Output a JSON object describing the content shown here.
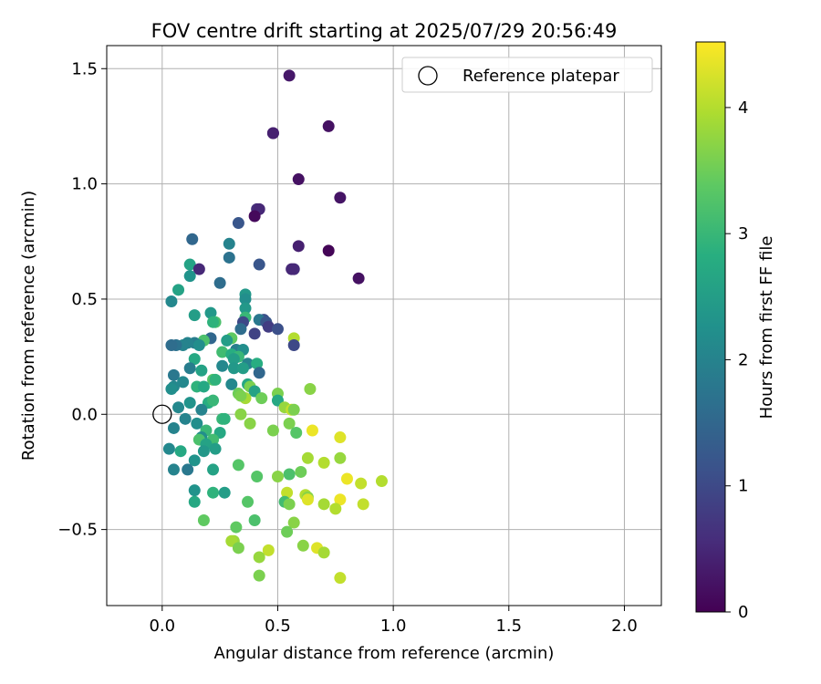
{
  "chart_data": {
    "type": "scatter",
    "title": "FOV centre drift starting at 2025/07/29 20:56:49",
    "xlabel": "Angular distance from reference (arcmin)",
    "ylabel": "Rotation from reference (arcmin)",
    "xlim": [
      -0.24,
      2.16
    ],
    "ylim": [
      -0.83,
      1.6
    ],
    "xticks": [
      "0.0",
      "0.5",
      "1.0",
      "1.5",
      "2.0"
    ],
    "xtick_values": [
      0,
      0.5,
      1,
      1.5,
      2
    ],
    "yticks": [
      "−0.5",
      "0.0",
      "0.5",
      "1.0",
      "1.5"
    ],
    "ytick_values": [
      -0.5,
      0,
      0.5,
      1,
      1.5
    ],
    "grid": true,
    "legend": {
      "position": "top-right",
      "entries": [
        {
          "label": "Reference platepar",
          "marker": "open-circle"
        }
      ]
    },
    "reference_point": {
      "x": 0.0,
      "y": 0.0,
      "label": "Reference platepar"
    },
    "colorbar": {
      "label": "Hours from first FF file",
      "min": 0,
      "max": 4.52,
      "ticks": [
        "0",
        "1",
        "2",
        "3",
        "4"
      ],
      "tick_values": [
        0,
        1,
        2,
        3,
        4
      ],
      "colormap": "viridis"
    },
    "points": [
      {
        "x": 0.55,
        "y": 1.47,
        "h": 0.3
      },
      {
        "x": 0.72,
        "y": 1.25,
        "h": 0.2
      },
      {
        "x": 0.48,
        "y": 1.22,
        "h": 0.3
      },
      {
        "x": 0.48,
        "y": 1.22,
        "h": 0.4
      },
      {
        "x": 0.59,
        "y": 1.02,
        "h": 0.2
      },
      {
        "x": 0.77,
        "y": 0.94,
        "h": 0.25
      },
      {
        "x": 0.41,
        "y": 0.89,
        "h": 0.6
      },
      {
        "x": 0.42,
        "y": 0.89,
        "h": 0.5
      },
      {
        "x": 0.4,
        "y": 0.86,
        "h": 0.1
      },
      {
        "x": 0.33,
        "y": 0.83,
        "h": 1.2
      },
      {
        "x": 0.13,
        "y": 0.76,
        "h": 1.5
      },
      {
        "x": 0.59,
        "y": 0.73,
        "h": 0.4
      },
      {
        "x": 0.72,
        "y": 0.71,
        "h": 0.05
      },
      {
        "x": 0.29,
        "y": 0.74,
        "h": 2.0
      },
      {
        "x": 0.29,
        "y": 0.68,
        "h": 1.7
      },
      {
        "x": 0.42,
        "y": 0.65,
        "h": 1.2
      },
      {
        "x": 0.57,
        "y": 0.63,
        "h": 0.55
      },
      {
        "x": 0.56,
        "y": 0.63,
        "h": 0.5
      },
      {
        "x": 0.12,
        "y": 0.65,
        "h": 2.6
      },
      {
        "x": 0.16,
        "y": 0.63,
        "h": 0.5
      },
      {
        "x": 0.12,
        "y": 0.6,
        "h": 2.3
      },
      {
        "x": 0.85,
        "y": 0.59,
        "h": 0.2
      },
      {
        "x": 0.25,
        "y": 0.57,
        "h": 1.6
      },
      {
        "x": 0.07,
        "y": 0.54,
        "h": 2.6
      },
      {
        "x": 0.36,
        "y": 0.52,
        "h": 2.4
      },
      {
        "x": 0.04,
        "y": 0.49,
        "h": 2.1
      },
      {
        "x": 0.36,
        "y": 0.5,
        "h": 2.2
      },
      {
        "x": 0.36,
        "y": 0.46,
        "h": 2.4
      },
      {
        "x": 0.14,
        "y": 0.43,
        "h": 2.5
      },
      {
        "x": 0.21,
        "y": 0.44,
        "h": 2.4
      },
      {
        "x": 0.36,
        "y": 0.42,
        "h": 3.0
      },
      {
        "x": 0.23,
        "y": 0.4,
        "h": 3.2
      },
      {
        "x": 0.22,
        "y": 0.4,
        "h": 2.9
      },
      {
        "x": 0.35,
        "y": 0.4,
        "h": 1.0
      },
      {
        "x": 0.44,
        "y": 0.41,
        "h": 1.1
      },
      {
        "x": 0.42,
        "y": 0.41,
        "h": 1.8
      },
      {
        "x": 0.45,
        "y": 0.4,
        "h": 1.2
      },
      {
        "x": 0.46,
        "y": 0.38,
        "h": 0.8
      },
      {
        "x": 0.5,
        "y": 0.37,
        "h": 1.1
      },
      {
        "x": 0.34,
        "y": 0.37,
        "h": 1.6
      },
      {
        "x": 0.4,
        "y": 0.35,
        "h": 0.9
      },
      {
        "x": 0.57,
        "y": 0.33,
        "h": 4.0
      },
      {
        "x": 0.21,
        "y": 0.33,
        "h": 1.5
      },
      {
        "x": 0.18,
        "y": 0.32,
        "h": 3.2
      },
      {
        "x": 0.14,
        "y": 0.31,
        "h": 1.9
      },
      {
        "x": 0.11,
        "y": 0.31,
        "h": 2.0
      },
      {
        "x": 0.09,
        "y": 0.3,
        "h": 2.0
      },
      {
        "x": 0.06,
        "y": 0.3,
        "h": 1.7
      },
      {
        "x": 0.04,
        "y": 0.3,
        "h": 1.6
      },
      {
        "x": 0.16,
        "y": 0.3,
        "h": 2.2
      },
      {
        "x": 0.3,
        "y": 0.33,
        "h": 3.4
      },
      {
        "x": 0.28,
        "y": 0.32,
        "h": 2.5
      },
      {
        "x": 0.57,
        "y": 0.3,
        "h": 1.0
      },
      {
        "x": 0.32,
        "y": 0.28,
        "h": 1.9
      },
      {
        "x": 0.35,
        "y": 0.28,
        "h": 2.2
      },
      {
        "x": 0.26,
        "y": 0.27,
        "h": 3.1
      },
      {
        "x": 0.3,
        "y": 0.26,
        "h": 2.8
      },
      {
        "x": 0.33,
        "y": 0.25,
        "h": 3.0
      },
      {
        "x": 0.31,
        "y": 0.24,
        "h": 2.5
      },
      {
        "x": 0.14,
        "y": 0.24,
        "h": 2.7
      },
      {
        "x": 0.37,
        "y": 0.22,
        "h": 2.0
      },
      {
        "x": 0.41,
        "y": 0.22,
        "h": 2.8
      },
      {
        "x": 0.26,
        "y": 0.21,
        "h": 2.1
      },
      {
        "x": 0.31,
        "y": 0.2,
        "h": 2.4
      },
      {
        "x": 0.12,
        "y": 0.2,
        "h": 1.9
      },
      {
        "x": 0.35,
        "y": 0.2,
        "h": 2.5
      },
      {
        "x": 0.17,
        "y": 0.19,
        "h": 2.6
      },
      {
        "x": 0.42,
        "y": 0.18,
        "h": 1.5
      },
      {
        "x": 0.05,
        "y": 0.17,
        "h": 1.8
      },
      {
        "x": 0.22,
        "y": 0.15,
        "h": 3.3
      },
      {
        "x": 0.09,
        "y": 0.14,
        "h": 2.1
      },
      {
        "x": 0.23,
        "y": 0.15,
        "h": 2.9
      },
      {
        "x": 0.3,
        "y": 0.13,
        "h": 2.1
      },
      {
        "x": 0.37,
        "y": 0.13,
        "h": 2.7
      },
      {
        "x": 0.38,
        "y": 0.12,
        "h": 3.6
      },
      {
        "x": 0.15,
        "y": 0.12,
        "h": 2.9
      },
      {
        "x": 0.05,
        "y": 0.12,
        "h": 2.1
      },
      {
        "x": 0.04,
        "y": 0.11,
        "h": 2.2
      },
      {
        "x": 0.64,
        "y": 0.11,
        "h": 3.7
      },
      {
        "x": 0.18,
        "y": 0.12,
        "h": 2.7
      },
      {
        "x": 0.4,
        "y": 0.1,
        "h": 2.6
      },
      {
        "x": 0.33,
        "y": 0.09,
        "h": 3.5
      },
      {
        "x": 0.5,
        "y": 0.09,
        "h": 3.6
      },
      {
        "x": 0.36,
        "y": 0.07,
        "h": 3.9
      },
      {
        "x": 0.34,
        "y": 0.08,
        "h": 3.6
      },
      {
        "x": 0.43,
        "y": 0.07,
        "h": 3.5
      },
      {
        "x": 0.5,
        "y": 0.06,
        "h": 2.7
      },
      {
        "x": 0.2,
        "y": 0.05,
        "h": 2.8
      },
      {
        "x": 0.12,
        "y": 0.05,
        "h": 2.3
      },
      {
        "x": 0.22,
        "y": 0.06,
        "h": 3.0
      },
      {
        "x": 0.07,
        "y": 0.03,
        "h": 2.1
      },
      {
        "x": 0.17,
        "y": 0.02,
        "h": 2.0
      },
      {
        "x": 0.53,
        "y": 0.03,
        "h": 3.8
      },
      {
        "x": 0.56,
        "y": 0.02,
        "h": 4.1
      },
      {
        "x": 0.57,
        "y": 0.02,
        "h": 3.6
      },
      {
        "x": 0.34,
        "y": 0.0,
        "h": 3.7
      },
      {
        "x": 0.1,
        "y": -0.02,
        "h": 2.0
      },
      {
        "x": 0.26,
        "y": -0.02,
        "h": 3.0
      },
      {
        "x": 0.27,
        "y": -0.02,
        "h": 2.9
      },
      {
        "x": 0.15,
        "y": -0.04,
        "h": 2.2
      },
      {
        "x": 0.38,
        "y": -0.04,
        "h": 3.7
      },
      {
        "x": 0.55,
        "y": -0.04,
        "h": 3.6
      },
      {
        "x": 0.05,
        "y": -0.06,
        "h": 2.0
      },
      {
        "x": 0.65,
        "y": -0.07,
        "h": 4.4
      },
      {
        "x": 0.48,
        "y": -0.07,
        "h": 3.6
      },
      {
        "x": 0.19,
        "y": -0.07,
        "h": 3.0
      },
      {
        "x": 0.25,
        "y": -0.08,
        "h": 2.7
      },
      {
        "x": 0.58,
        "y": -0.08,
        "h": 3.3
      },
      {
        "x": 0.17,
        "y": -0.1,
        "h": 2.2
      },
      {
        "x": 0.77,
        "y": -0.1,
        "h": 4.3
      },
      {
        "x": 0.16,
        "y": -0.11,
        "h": 3.2
      },
      {
        "x": 0.22,
        "y": -0.11,
        "h": 3.1
      },
      {
        "x": 0.19,
        "y": -0.13,
        "h": 2.6
      },
      {
        "x": 0.23,
        "y": -0.15,
        "h": 2.5
      },
      {
        "x": 0.08,
        "y": -0.16,
        "h": 2.7
      },
      {
        "x": 0.03,
        "y": -0.15,
        "h": 2.1
      },
      {
        "x": 0.18,
        "y": -0.16,
        "h": 2.4
      },
      {
        "x": 0.63,
        "y": -0.19,
        "h": 3.9
      },
      {
        "x": 0.77,
        "y": -0.19,
        "h": 3.8
      },
      {
        "x": 0.14,
        "y": -0.2,
        "h": 2.3
      },
      {
        "x": 0.7,
        "y": -0.21,
        "h": 4.0
      },
      {
        "x": 0.33,
        "y": -0.22,
        "h": 3.3
      },
      {
        "x": 0.05,
        "y": -0.24,
        "h": 2.0
      },
      {
        "x": 0.11,
        "y": -0.24,
        "h": 1.8
      },
      {
        "x": 0.22,
        "y": -0.24,
        "h": 2.6
      },
      {
        "x": 0.55,
        "y": -0.26,
        "h": 3.2
      },
      {
        "x": 0.6,
        "y": -0.25,
        "h": 3.5
      },
      {
        "x": 0.41,
        "y": -0.27,
        "h": 3.3
      },
      {
        "x": 0.5,
        "y": -0.27,
        "h": 3.7
      },
      {
        "x": 0.8,
        "y": -0.28,
        "h": 4.4
      },
      {
        "x": 0.95,
        "y": -0.29,
        "h": 4.0
      },
      {
        "x": 0.86,
        "y": -0.3,
        "h": 4.1
      },
      {
        "x": 0.14,
        "y": -0.33,
        "h": 2.3
      },
      {
        "x": 0.22,
        "y": -0.34,
        "h": 2.9
      },
      {
        "x": 0.27,
        "y": -0.34,
        "h": 2.5
      },
      {
        "x": 0.54,
        "y": -0.34,
        "h": 4.1
      },
      {
        "x": 0.62,
        "y": -0.35,
        "h": 4.0
      },
      {
        "x": 0.63,
        "y": -0.36,
        "h": 3.7
      },
      {
        "x": 0.77,
        "y": -0.37,
        "h": 4.4
      },
      {
        "x": 0.63,
        "y": -0.37,
        "h": 4.3
      },
      {
        "x": 0.14,
        "y": -0.38,
        "h": 2.7
      },
      {
        "x": 0.37,
        "y": -0.38,
        "h": 3.3
      },
      {
        "x": 0.53,
        "y": -0.38,
        "h": 3.1
      },
      {
        "x": 0.55,
        "y": -0.39,
        "h": 3.6
      },
      {
        "x": 0.7,
        "y": -0.39,
        "h": 3.9
      },
      {
        "x": 0.87,
        "y": -0.39,
        "h": 4.1
      },
      {
        "x": 0.75,
        "y": -0.41,
        "h": 4.0
      },
      {
        "x": 0.57,
        "y": -0.47,
        "h": 3.7
      },
      {
        "x": 0.18,
        "y": -0.46,
        "h": 3.4
      },
      {
        "x": 0.4,
        "y": -0.46,
        "h": 3.2
      },
      {
        "x": 0.32,
        "y": -0.49,
        "h": 3.4
      },
      {
        "x": 0.54,
        "y": -0.51,
        "h": 3.5
      },
      {
        "x": 0.31,
        "y": -0.55,
        "h": 3.8
      },
      {
        "x": 0.3,
        "y": -0.55,
        "h": 3.9
      },
      {
        "x": 0.61,
        "y": -0.57,
        "h": 3.7
      },
      {
        "x": 0.33,
        "y": -0.58,
        "h": 3.6
      },
      {
        "x": 0.46,
        "y": -0.59,
        "h": 4.1
      },
      {
        "x": 0.67,
        "y": -0.58,
        "h": 4.3
      },
      {
        "x": 0.7,
        "y": -0.6,
        "h": 3.9
      },
      {
        "x": 0.42,
        "y": -0.62,
        "h": 3.8
      },
      {
        "x": 0.42,
        "y": -0.7,
        "h": 3.6
      },
      {
        "x": 0.77,
        "y": -0.71,
        "h": 4.1
      }
    ]
  }
}
